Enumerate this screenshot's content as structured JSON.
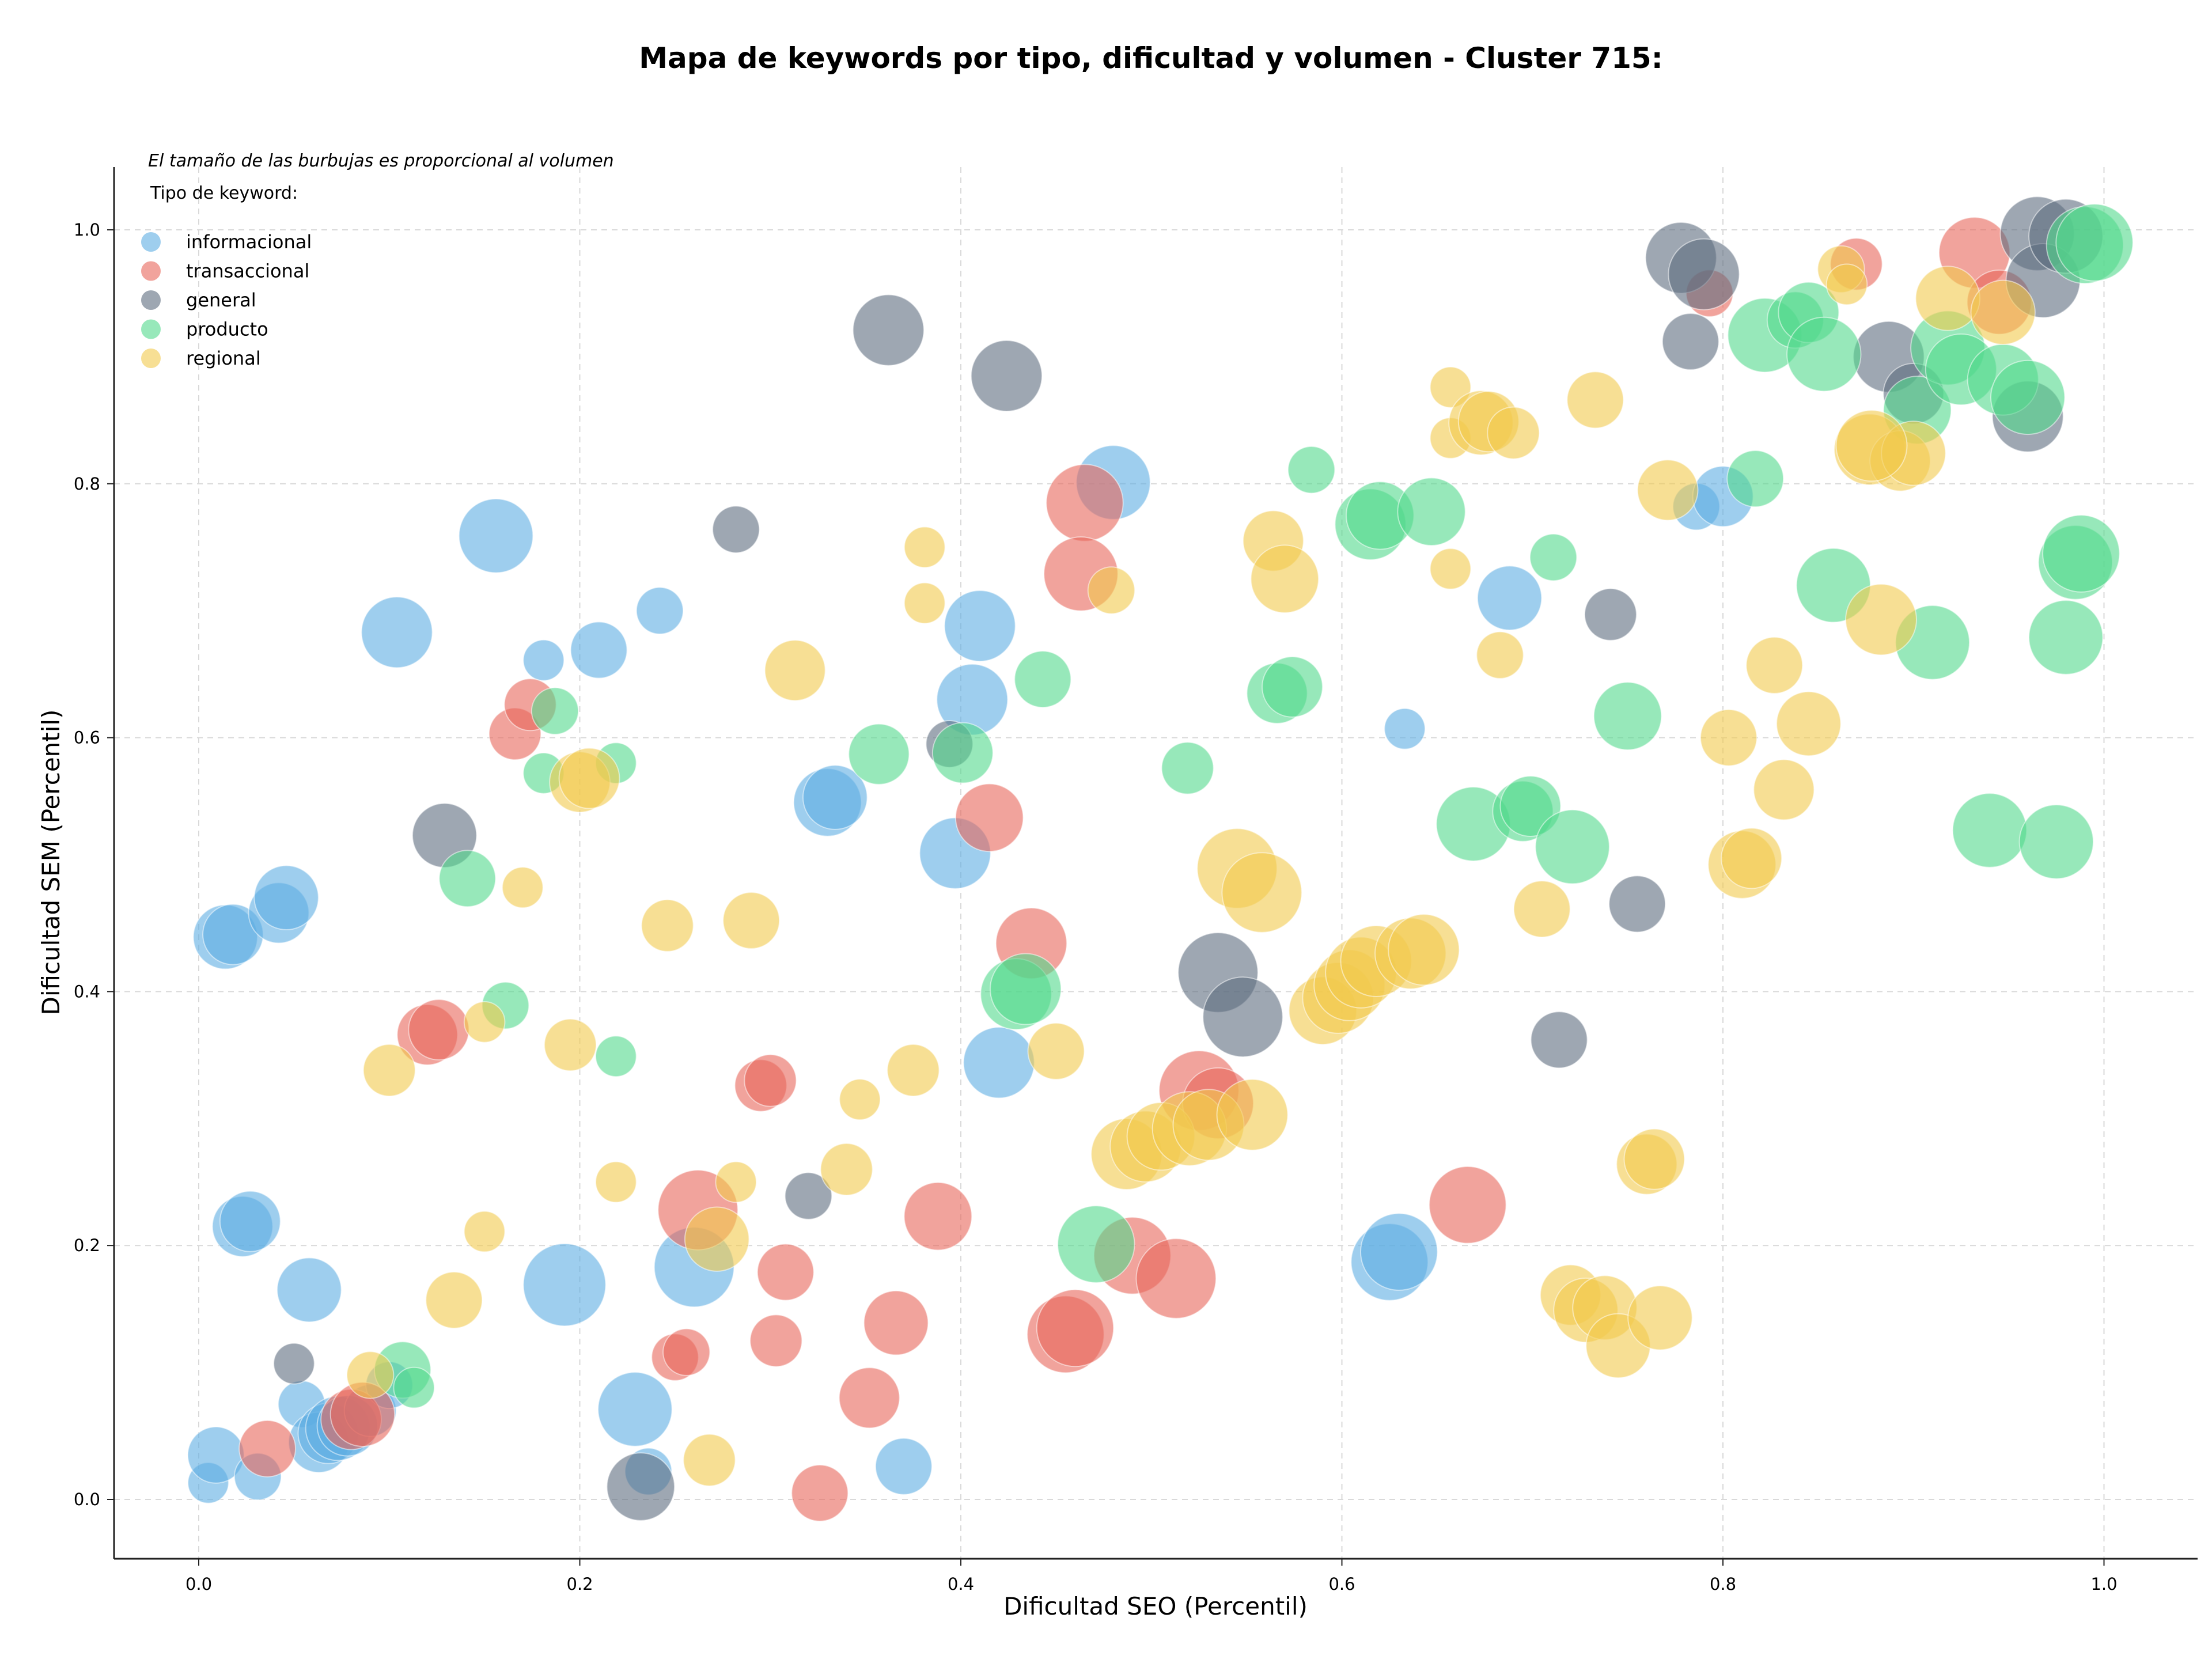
{
  "chart_data": {
    "type": "scatter",
    "title": "Mapa de keywords por tipo, dificultad y volumen - Cluster 715:",
    "xlabel": "Dificultad SEO (Percentil)",
    "ylabel": "Dificultad SEM (Percentil)",
    "xlim": [
      -0.045,
      1.048
    ],
    "ylim": [
      -0.045,
      1.05
    ],
    "xticks": [
      "0.0",
      "0.2",
      "0.4",
      "0.6",
      "0.8",
      "1.0"
    ],
    "yticks": [
      "0.0",
      "0.2",
      "0.4",
      "0.6",
      "0.8",
      "1.0"
    ],
    "grid": true,
    "note": "El tamaño de las burbujas es proporcional al volumen",
    "legend": {
      "title": "Tipo de keyword:",
      "placement": "top-left",
      "entries": [
        "informacional",
        "transaccional",
        "general",
        "producto",
        "regional"
      ]
    },
    "colors": {
      "informacional": "#5dade2",
      "transaccional": "#e8655a",
      "general": "#5d6d7e",
      "producto": "#52d98c",
      "regional": "#f2c94c"
    },
    "series": [
      {
        "name": "informacional",
        "points": [
          [
            0.005,
            0.013,
            2
          ],
          [
            0.009,
            0.035,
            5
          ],
          [
            0.031,
            0.018,
            3
          ],
          [
            0.054,
            0.075,
            3
          ],
          [
            0.063,
            0.045,
            6
          ],
          [
            0.068,
            0.052,
            6
          ],
          [
            0.073,
            0.056,
            7
          ],
          [
            0.078,
            0.058,
            6
          ],
          [
            0.09,
            0.07,
            4
          ],
          [
            0.1,
            0.09,
            3
          ],
          [
            0.014,
            0.443,
            7
          ],
          [
            0.018,
            0.445,
            6
          ],
          [
            0.042,
            0.462,
            6
          ],
          [
            0.046,
            0.474,
            7
          ],
          [
            0.023,
            0.215,
            6
          ],
          [
            0.027,
            0.219,
            6
          ],
          [
            0.058,
            0.165,
            7
          ],
          [
            0.104,
            0.683,
            9
          ],
          [
            0.156,
            0.759,
            10
          ],
          [
            0.181,
            0.661,
            2
          ],
          [
            0.21,
            0.669,
            5
          ],
          [
            0.242,
            0.7,
            3
          ],
          [
            0.192,
            0.169,
            13
          ],
          [
            0.229,
            0.071,
            10
          ],
          [
            0.26,
            0.183,
            12
          ],
          [
            0.236,
            0.022,
            3
          ],
          [
            0.33,
            0.549,
            8
          ],
          [
            0.334,
            0.553,
            7
          ],
          [
            0.397,
            0.509,
            9
          ],
          [
            0.406,
            0.63,
            9
          ],
          [
            0.41,
            0.688,
            9
          ],
          [
            0.42,
            0.344,
            9
          ],
          [
            0.37,
            0.026,
            5
          ],
          [
            0.48,
            0.801,
            10
          ],
          [
            0.625,
            0.187,
            11
          ],
          [
            0.63,
            0.195,
            11
          ],
          [
            0.633,
            0.607,
            2
          ],
          [
            0.688,
            0.71,
            7
          ],
          [
            0.786,
            0.782,
            3
          ],
          [
            0.8,
            0.79,
            6
          ]
        ]
      },
      {
        "name": "transaccional",
        "points": [
          [
            0.036,
            0.04,
            5
          ],
          [
            0.08,
            0.063,
            6
          ],
          [
            0.086,
            0.067,
            7
          ],
          [
            0.12,
            0.366,
            6
          ],
          [
            0.126,
            0.37,
            6
          ],
          [
            0.166,
            0.603,
            4
          ],
          [
            0.174,
            0.626,
            4
          ],
          [
            0.25,
            0.112,
            3
          ],
          [
            0.256,
            0.116,
            3
          ],
          [
            0.262,
            0.228,
            12
          ],
          [
            0.295,
            0.326,
            4
          ],
          [
            0.3,
            0.33,
            4
          ],
          [
            0.303,
            0.125,
            4
          ],
          [
            0.308,
            0.179,
            5
          ],
          [
            0.326,
            0.005,
            5
          ],
          [
            0.352,
            0.08,
            6
          ],
          [
            0.366,
            0.139,
            7
          ],
          [
            0.388,
            0.223,
            8
          ],
          [
            0.415,
            0.537,
            8
          ],
          [
            0.437,
            0.438,
            9
          ],
          [
            0.455,
            0.13,
            11
          ],
          [
            0.46,
            0.135,
            11
          ],
          [
            0.465,
            0.785,
            11
          ],
          [
            0.463,
            0.729,
            10
          ],
          [
            0.49,
            0.192,
            11
          ],
          [
            0.513,
            0.174,
            12
          ],
          [
            0.525,
            0.322,
            12
          ],
          [
            0.535,
            0.312,
            9
          ],
          [
            0.666,
            0.232,
            11
          ],
          [
            0.793,
            0.95,
            3
          ],
          [
            0.87,
            0.973,
            4
          ],
          [
            0.932,
            0.982,
            9
          ],
          [
            0.945,
            0.943,
            7
          ]
        ]
      },
      {
        "name": "general",
        "points": [
          [
            0.05,
            0.107,
            2
          ],
          [
            0.129,
            0.523,
            7
          ],
          [
            0.232,
            0.01,
            8
          ],
          [
            0.282,
            0.764,
            3
          ],
          [
            0.32,
            0.239,
            3
          ],
          [
            0.362,
            0.921,
            9
          ],
          [
            0.394,
            0.595,
            3
          ],
          [
            0.424,
            0.885,
            9
          ],
          [
            0.535,
            0.415,
            12
          ],
          [
            0.548,
            0.38,
            12
          ],
          [
            0.714,
            0.362,
            5
          ],
          [
            0.741,
            0.697,
            4
          ],
          [
            0.755,
            0.469,
            5
          ],
          [
            0.778,
            0.978,
            9
          ],
          [
            0.783,
            0.912,
            5
          ],
          [
            0.79,
            0.965,
            9
          ],
          [
            0.887,
            0.9,
            9
          ],
          [
            0.9,
            0.871,
            6
          ],
          [
            0.96,
            0.853,
            9
          ],
          [
            0.965,
            0.997,
            10
          ],
          [
            0.968,
            0.96,
            10
          ],
          [
            0.98,
            0.995,
            10
          ]
        ]
      },
      {
        "name": "producto",
        "points": [
          [
            0.107,
            0.102,
            5
          ],
          [
            0.113,
            0.088,
            2
          ],
          [
            0.141,
            0.489,
            5
          ],
          [
            0.161,
            0.389,
            3
          ],
          [
            0.181,
            0.572,
            2
          ],
          [
            0.187,
            0.621,
            3
          ],
          [
            0.219,
            0.349,
            2
          ],
          [
            0.219,
            0.58,
            2
          ],
          [
            0.357,
            0.587,
            6
          ],
          [
            0.401,
            0.588,
            6
          ],
          [
            0.429,
            0.398,
            9
          ],
          [
            0.434,
            0.402,
            9
          ],
          [
            0.443,
            0.646,
            5
          ],
          [
            0.471,
            0.201,
            11
          ],
          [
            0.519,
            0.576,
            4
          ],
          [
            0.566,
            0.635,
            6
          ],
          [
            0.574,
            0.64,
            6
          ],
          [
            0.584,
            0.811,
            3
          ],
          [
            0.615,
            0.768,
            9
          ],
          [
            0.62,
            0.775,
            8
          ],
          [
            0.647,
            0.778,
            8
          ],
          [
            0.669,
            0.532,
            10
          ],
          [
            0.695,
            0.542,
            6
          ],
          [
            0.699,
            0.546,
            6
          ],
          [
            0.711,
            0.742,
            3
          ],
          [
            0.721,
            0.514,
            10
          ],
          [
            0.75,
            0.617,
            8
          ],
          [
            0.817,
            0.804,
            5
          ],
          [
            0.822,
            0.917,
            10
          ],
          [
            0.838,
            0.929,
            5
          ],
          [
            0.845,
            0.935,
            6
          ],
          [
            0.853,
            0.902,
            10
          ],
          [
            0.858,
            0.72,
            10
          ],
          [
            0.902,
            0.858,
            8
          ],
          [
            0.91,
            0.675,
            10
          ],
          [
            0.918,
            0.907,
            10
          ],
          [
            0.925,
            0.89,
            9
          ],
          [
            0.94,
            0.527,
            10
          ],
          [
            0.947,
            0.882,
            9
          ],
          [
            0.96,
            0.868,
            10
          ],
          [
            0.975,
            0.518,
            10
          ],
          [
            0.98,
            0.679,
            10
          ],
          [
            0.985,
            0.738,
            10
          ],
          [
            0.988,
            0.745,
            11
          ],
          [
            0.99,
            0.988,
            11
          ],
          [
            0.995,
            0.99,
            11
          ]
        ]
      },
      {
        "name": "regional",
        "points": [
          [
            0.09,
            0.098,
            3
          ],
          [
            0.1,
            0.338,
            4
          ],
          [
            0.134,
            0.157,
            5
          ],
          [
            0.15,
            0.376,
            2
          ],
          [
            0.15,
            0.211,
            2
          ],
          [
            0.17,
            0.482,
            2
          ],
          [
            0.195,
            0.358,
            4
          ],
          [
            0.2,
            0.565,
            6
          ],
          [
            0.205,
            0.568,
            6
          ],
          [
            0.219,
            0.25,
            2
          ],
          [
            0.246,
            0.452,
            4
          ],
          [
            0.268,
            0.031,
            4
          ],
          [
            0.272,
            0.205,
            7
          ],
          [
            0.282,
            0.25,
            2
          ],
          [
            0.29,
            0.456,
            5
          ],
          [
            0.313,
            0.653,
            6
          ],
          [
            0.34,
            0.26,
            4
          ],
          [
            0.347,
            0.315,
            2
          ],
          [
            0.375,
            0.338,
            4
          ],
          [
            0.381,
            0.75,
            2
          ],
          [
            0.381,
            0.706,
            2
          ],
          [
            0.45,
            0.353,
            5
          ],
          [
            0.479,
            0.716,
            3
          ],
          [
            0.487,
            0.272,
            9
          ],
          [
            0.497,
            0.278,
            9
          ],
          [
            0.505,
            0.286,
            8
          ],
          [
            0.52,
            0.292,
            10
          ],
          [
            0.53,
            0.295,
            9
          ],
          [
            0.545,
            0.497,
            12
          ],
          [
            0.553,
            0.303,
            9
          ],
          [
            0.558,
            0.478,
            12
          ],
          [
            0.564,
            0.755,
            6
          ],
          [
            0.57,
            0.725,
            8
          ],
          [
            0.59,
            0.385,
            8
          ],
          [
            0.598,
            0.395,
            9
          ],
          [
            0.604,
            0.405,
            9
          ],
          [
            0.61,
            0.415,
            9
          ],
          [
            0.618,
            0.424,
            9
          ],
          [
            0.636,
            0.43,
            9
          ],
          [
            0.643,
            0.433,
            9
          ],
          [
            0.657,
            0.876,
            2
          ],
          [
            0.657,
            0.836,
            2
          ],
          [
            0.657,
            0.733,
            2
          ],
          [
            0.673,
            0.848,
            7
          ],
          [
            0.677,
            0.849,
            6
          ],
          [
            0.683,
            0.665,
            3
          ],
          [
            0.69,
            0.84,
            4
          ],
          [
            0.705,
            0.465,
            5
          ],
          [
            0.72,
            0.161,
            6
          ],
          [
            0.728,
            0.149,
            7
          ],
          [
            0.733,
            0.866,
            5
          ],
          [
            0.738,
            0.151,
            7
          ],
          [
            0.745,
            0.121,
            7
          ],
          [
            0.76,
            0.264,
            6
          ],
          [
            0.764,
            0.268,
            6
          ],
          [
            0.767,
            0.143,
            7
          ],
          [
            0.771,
            0.795,
            6
          ],
          [
            0.803,
            0.6,
            5
          ],
          [
            0.81,
            0.5,
            8
          ],
          [
            0.815,
            0.505,
            6
          ],
          [
            0.827,
            0.657,
            5
          ],
          [
            0.832,
            0.559,
            6
          ],
          [
            0.845,
            0.611,
            7
          ],
          [
            0.862,
            0.969,
            3
          ],
          [
            0.865,
            0.957,
            2
          ],
          [
            0.877,
            0.827,
            9
          ],
          [
            0.883,
            0.693,
            9
          ],
          [
            0.893,
            0.818,
            6
          ],
          [
            0.9,
            0.824,
            7
          ],
          [
            0.918,
            0.946,
            7
          ],
          [
            0.947,
            0.935,
            7
          ],
          [
            0.878,
            0.83,
            9
          ]
        ]
      }
    ]
  }
}
